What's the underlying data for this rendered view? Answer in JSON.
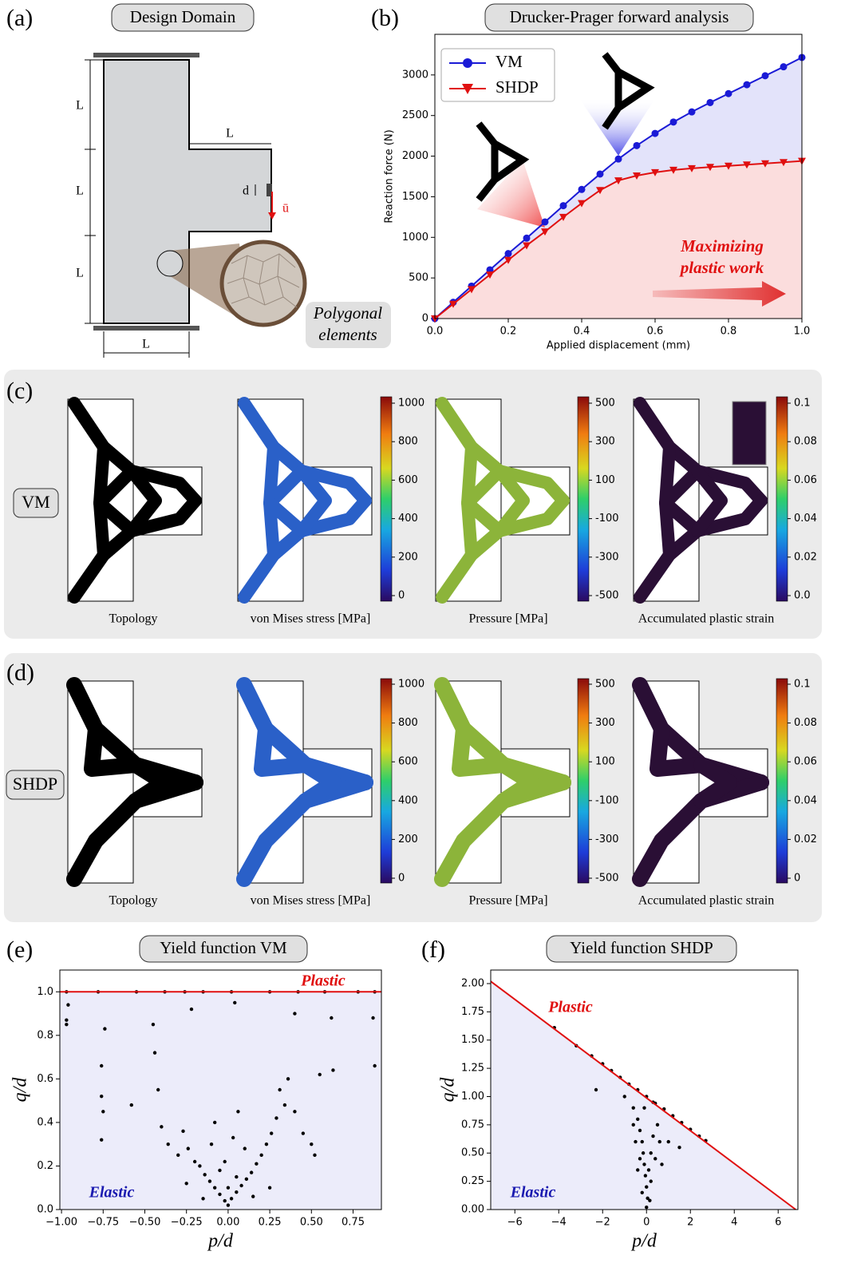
{
  "panels": {
    "a": {
      "label": "(a)",
      "title": "Design Domain",
      "dims": [
        "L",
        "L",
        "L",
        "L",
        "L"
      ],
      "d": "d",
      "u": "ū",
      "note": [
        "Polygonal",
        "elements"
      ]
    },
    "c": {
      "label": "(c)",
      "row_label": "VM",
      "captions": [
        "Topology",
        "von Mises stress [MPa]",
        "Pressure [MPa]",
        "Accumulated plastic strain"
      ],
      "colorbars": [
        {
          "lim": [
            0,
            1000
          ],
          "ticks": [
            0,
            200,
            400,
            600,
            800,
            1000
          ]
        },
        {
          "lim": [
            -500,
            500
          ],
          "ticks": [
            -500,
            -300,
            -100,
            100,
            300,
            500
          ]
        },
        {
          "lim": [
            0,
            0.1
          ],
          "ticks": [
            {
              "value": 0,
              "label": "0.0"
            },
            0.02,
            0.04,
            0.06,
            0.08,
            0.1
          ]
        }
      ]
    },
    "d": {
      "label": "(d)",
      "row_label": "SHDP",
      "captions": [
        "Topology",
        "von Mises stress [MPa]",
        "Pressure [MPa]",
        "Accumulated plastic strain"
      ],
      "colorbars": [
        {
          "lim": [
            0,
            1000
          ],
          "ticks": [
            0,
            200,
            400,
            600,
            800,
            1000
          ]
        },
        {
          "lim": [
            -500,
            500
          ],
          "ticks": [
            -500,
            -300,
            -100,
            100,
            300,
            500
          ]
        },
        {
          "lim": [
            0,
            0.1
          ],
          "ticks": [
            0,
            0.02,
            0.04,
            0.06,
            0.08,
            0.1
          ]
        }
      ]
    }
  },
  "chart_data": [
    {
      "type": "line",
      "label": "(b)",
      "title": "Drucker-Prager forward analysis",
      "x_label": "Applied displacement (mm)",
      "y_label": "Reaction force (N)",
      "x": [
        0,
        0.05,
        0.1,
        0.15,
        0.2,
        0.25,
        0.3,
        0.35,
        0.4,
        0.45,
        0.5,
        0.55,
        0.6,
        0.65,
        0.7,
        0.75,
        0.8,
        0.85,
        0.9,
        0.95,
        1.0
      ],
      "series": [
        {
          "name": "VM",
          "color": "#1a1ad6",
          "marker": "circle",
          "values": [
            0,
            200,
            400,
            600,
            800,
            990,
            1190,
            1390,
            1590,
            1780,
            1965,
            2130,
            2280,
            2420,
            2545,
            2660,
            2770,
            2880,
            2990,
            3100,
            3215
          ]
        },
        {
          "name": "SHDP",
          "color": "#e01010",
          "marker": "triangle-down",
          "values": [
            0,
            180,
            360,
            540,
            720,
            900,
            1070,
            1250,
            1420,
            1580,
            1700,
            1760,
            1800,
            1830,
            1850,
            1865,
            1880,
            1895,
            1910,
            1925,
            1940
          ]
        }
      ],
      "xlim": [
        0,
        1
      ],
      "ylim": [
        0,
        3500
      ],
      "xticks": [
        {
          "value": 0,
          "label": "0.0"
        },
        0.2,
        0.4,
        0.6,
        0.8,
        {
          "value": 1,
          "label": "1.0"
        }
      ],
      "yticks": [
        0,
        500,
        1000,
        1500,
        2000,
        2500,
        3000
      ],
      "legend": "upper left",
      "annotation": [
        "Maximizing",
        "plastic work"
      ]
    },
    {
      "type": "scatter",
      "label": "(e)",
      "title": "Yield function VM",
      "x_label": "p/d",
      "y_label": "q/d",
      "color": "#000000",
      "background": "#ececfa",
      "x": [
        -0.97,
        -0.97,
        -0.96,
        -0.76,
        -0.76,
        -0.75,
        -0.76,
        -0.74,
        -0.58,
        -0.45,
        -0.44,
        -0.42,
        -0.4,
        -0.36,
        -0.3,
        -0.27,
        -0.24,
        -0.2,
        -0.17,
        -0.14,
        -0.11,
        -0.08,
        -0.05,
        -0.02,
        0.0,
        0.02,
        0.05,
        0.08,
        0.11,
        0.14,
        0.17,
        0.2,
        0.23,
        0.26,
        0.29,
        0.31,
        0.34,
        0.36,
        0.4,
        0.45,
        0.5,
        0.52,
        0.55,
        0.62,
        0.63,
        0.87,
        0.88,
        -0.1,
        0.1,
        -0.05,
        0.05,
        0.0,
        -0.02,
        0.03,
        -0.15,
        0.15,
        -0.25,
        0.25,
        -0.08,
        0.06,
        -0.97,
        -0.78,
        -0.55,
        -0.38,
        -0.26,
        -0.15,
        0.02,
        0.25,
        0.42,
        0.58,
        0.78,
        0.88,
        -0.22,
        0.04,
        0.4
      ],
      "values": [
        0.85,
        0.87,
        0.94,
        0.66,
        0.52,
        0.45,
        0.32,
        0.83,
        0.48,
        0.85,
        0.72,
        0.55,
        0.38,
        0.3,
        0.25,
        0.36,
        0.28,
        0.22,
        0.2,
        0.16,
        0.13,
        0.1,
        0.07,
        0.04,
        0.02,
        0.05,
        0.08,
        0.11,
        0.14,
        0.17,
        0.21,
        0.25,
        0.3,
        0.35,
        0.42,
        0.55,
        0.48,
        0.6,
        0.45,
        0.35,
        0.3,
        0.25,
        0.62,
        0.88,
        0.64,
        0.88,
        0.66,
        0.3,
        0.28,
        0.18,
        0.15,
        0.1,
        0.22,
        0.33,
        0.05,
        0.06,
        0.12,
        0.1,
        0.4,
        0.45,
        1.0,
        1.0,
        1.0,
        1.0,
        1.0,
        1.0,
        1.0,
        1.0,
        1.0,
        1.0,
        1.0,
        1.0,
        0.92,
        0.95,
        0.9
      ],
      "yield_line": {
        "x": [
          -1.01,
          0.92
        ],
        "y": [
          1,
          1
        ],
        "color": "#e01010"
      },
      "annotations": {
        "plastic": "Plastic",
        "elastic": "Elastic"
      },
      "xlim": [
        -1.01,
        0.92
      ],
      "ylim": [
        0,
        1.1
      ],
      "xticks": [
        {
          "value": -1,
          "label": "−1.00"
        },
        {
          "value": -0.75,
          "label": "−0.75"
        },
        {
          "value": -0.5,
          "label": "−0.50"
        },
        {
          "value": -0.25,
          "label": "−0.25"
        },
        {
          "value": 0,
          "label": "0.00"
        },
        0.25,
        {
          "value": 0.5,
          "label": "0.50"
        },
        0.75
      ],
      "yticks": [
        {
          "value": 0,
          "label": "0.0"
        },
        0.2,
        0.4,
        0.6,
        0.8,
        {
          "value": 1,
          "label": "1.0"
        }
      ]
    },
    {
      "type": "scatter",
      "label": "(f)",
      "title": "Yield function SHDP",
      "x_label": "p/d",
      "y_label": "q/d",
      "color": "#000000",
      "background": "#ececfa",
      "x": [
        -4.2,
        -3.2,
        -2.5,
        -2.0,
        -1.6,
        -1.2,
        -0.8,
        -0.4,
        0,
        0.4,
        0.8,
        1.2,
        1.6,
        2.0,
        2.4,
        2.7,
        -2.3,
        -1.0,
        -0.6,
        -0.4,
        -0.3,
        -0.2,
        -0.15,
        -0.1,
        -0.05,
        0,
        0.05,
        0,
        0.1,
        0.2,
        0.3,
        0.5,
        0.6,
        0.4,
        0.2,
        -0.3,
        -0.5,
        -0.6,
        1.0,
        1.5,
        -0.2,
        0.15,
        -0.1,
        0.3,
        -0.4,
        0.7
      ],
      "values": [
        1.61,
        1.45,
        1.36,
        1.29,
        1.23,
        1.17,
        1.11,
        1.06,
        1.0,
        0.94,
        0.89,
        0.83,
        0.77,
        0.71,
        0.65,
        0.61,
        1.06,
        1.0,
        0.9,
        0.8,
        0.7,
        0.6,
        0.5,
        0.4,
        0.3,
        0.2,
        0.1,
        0.02,
        0.35,
        0.5,
        0.65,
        0.75,
        0.6,
        0.45,
        0.25,
        0.45,
        0.6,
        0.75,
        0.6,
        0.55,
        0.15,
        0.08,
        0.9,
        0.95,
        0.35,
        0.4
      ],
      "yield_line": {
        "x": [
          -7.1,
          6.8
        ],
        "y": [
          2.02,
          0
        ],
        "color": "#e01010"
      },
      "annotations": {
        "plastic": "Plastic",
        "elastic": "Elastic"
      },
      "xlim": [
        -7.1,
        6.9
      ],
      "ylim": [
        0,
        2.12
      ],
      "xticks": [
        {
          "value": -6,
          "label": "−6"
        },
        {
          "value": -4,
          "label": "−4"
        },
        {
          "value": -2,
          "label": "−2"
        },
        0,
        2,
        4,
        6
      ],
      "yticks": [
        {
          "value": 0,
          "label": "0.00"
        },
        0.25,
        {
          "value": 0.5,
          "label": "0.50"
        },
        0.75,
        {
          "value": 1,
          "label": "1.00"
        },
        1.25,
        {
          "value": 1.5,
          "label": "1.50"
        },
        1.75,
        {
          "value": 2,
          "label": "2.00"
        }
      ]
    }
  ]
}
